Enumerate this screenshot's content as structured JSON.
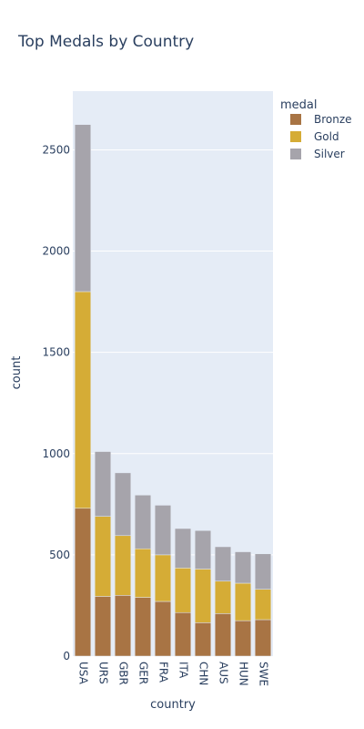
{
  "chart_data": {
    "type": "bar",
    "stacked": true,
    "title": "Top Medals by Country",
    "xlabel": "country",
    "ylabel": "count",
    "ylim": [
      0,
      2790
    ],
    "yticks": [
      0,
      500,
      1000,
      1500,
      2000,
      2500
    ],
    "grid": true,
    "legend_title": "medal",
    "legend_position": "top-right",
    "categories": [
      "USA",
      "URS",
      "GBR",
      "GER",
      "FRA",
      "ITA",
      "CHN",
      "AUS",
      "HUN",
      "SWE"
    ],
    "series": [
      {
        "name": "Bronze",
        "color": "#a87444",
        "values": [
          730,
          295,
          300,
          290,
          270,
          215,
          165,
          210,
          175,
          180
        ]
      },
      {
        "name": "Gold",
        "color": "#d5ac36",
        "values": [
          1070,
          395,
          295,
          240,
          230,
          220,
          265,
          160,
          185,
          150
        ]
      },
      {
        "name": "Silver",
        "color": "#a6a4ab",
        "values": [
          825,
          320,
          310,
          265,
          245,
          195,
          190,
          170,
          155,
          175
        ]
      }
    ]
  }
}
